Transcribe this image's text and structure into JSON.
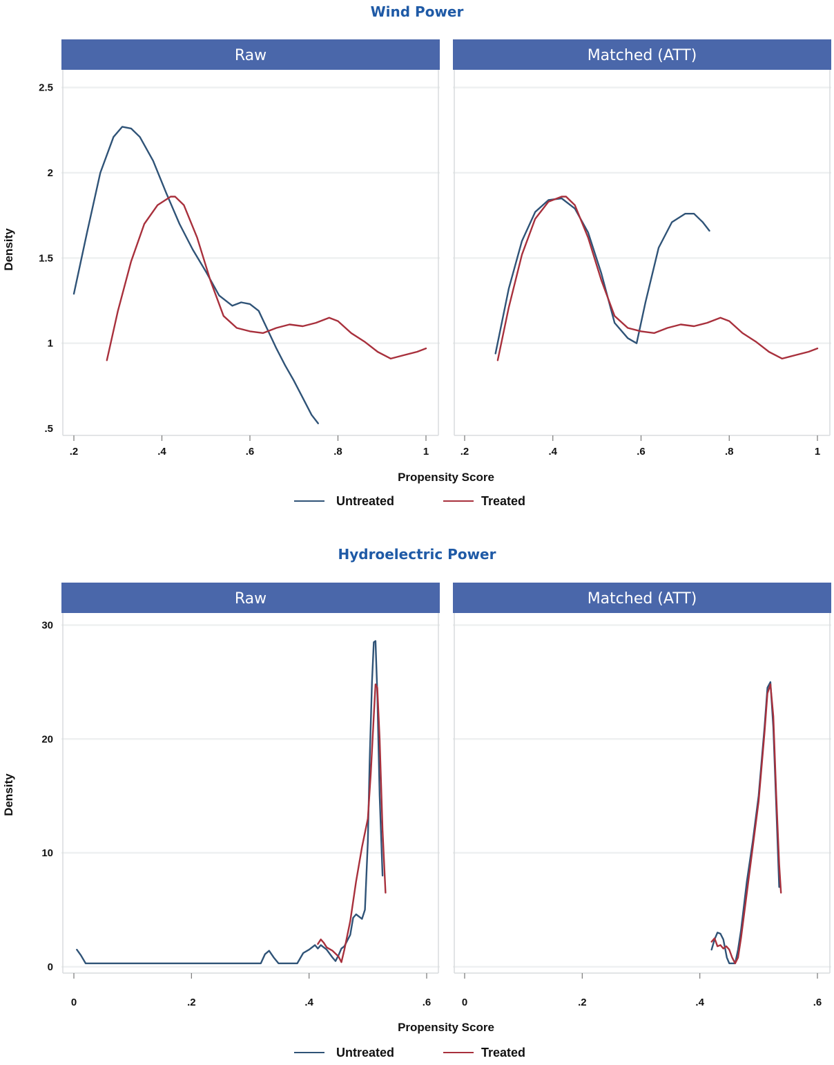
{
  "colors": {
    "untreated": "#2f5377",
    "treated": "#a8303c",
    "strip": "#4a67aa",
    "title": "#1f5aa6"
  },
  "legend": {
    "untreated_label": "Untreated",
    "treated_label": "Treated"
  },
  "chart_data": [
    {
      "type": "line",
      "title": "Wind Power",
      "xlabel": "Propensity Score",
      "ylabel": "Density",
      "ylim": [
        0.5,
        2.6
      ],
      "yticks": [
        0.5,
        1,
        1.5,
        2,
        2.5
      ],
      "ytick_labels": [
        ".5",
        "1",
        "1.5",
        "2",
        "2.5"
      ],
      "xlim": [
        0.2,
        1.0
      ],
      "xticks": [
        0.2,
        0.4,
        0.6,
        0.8,
        1.0
      ],
      "xtick_labels": [
        ".2",
        ".4",
        ".6",
        ".8",
        "1"
      ],
      "legend_position": "bottom",
      "panels": [
        {
          "name": "Raw",
          "series": [
            {
              "name": "Untreated",
              "x": [
                0.2,
                0.23,
                0.26,
                0.29,
                0.31,
                0.33,
                0.35,
                0.38,
                0.41,
                0.44,
                0.47,
                0.5,
                0.53,
                0.56,
                0.58,
                0.6,
                0.62,
                0.64,
                0.66,
                0.68,
                0.7,
                0.72,
                0.74,
                0.755
              ],
              "y": [
                1.29,
                1.65,
                2.0,
                2.21,
                2.27,
                2.26,
                2.21,
                2.07,
                1.88,
                1.7,
                1.55,
                1.42,
                1.28,
                1.22,
                1.24,
                1.23,
                1.19,
                1.08,
                0.97,
                0.87,
                0.78,
                0.68,
                0.58,
                0.53
              ]
            },
            {
              "name": "Treated",
              "x": [
                0.275,
                0.3,
                0.33,
                0.36,
                0.39,
                0.42,
                0.43,
                0.45,
                0.48,
                0.51,
                0.54,
                0.57,
                0.6,
                0.63,
                0.66,
                0.69,
                0.72,
                0.75,
                0.78,
                0.8,
                0.83,
                0.86,
                0.89,
                0.92,
                0.95,
                0.98,
                1.0
              ],
              "y": [
                0.9,
                1.19,
                1.48,
                1.7,
                1.81,
                1.86,
                1.86,
                1.81,
                1.62,
                1.37,
                1.16,
                1.09,
                1.07,
                1.06,
                1.09,
                1.11,
                1.1,
                1.12,
                1.15,
                1.13,
                1.06,
                1.01,
                0.95,
                0.91,
                0.93,
                0.95,
                0.97
              ]
            }
          ]
        },
        {
          "name": "Matched (ATT)",
          "series": [
            {
              "name": "Untreated",
              "x": [
                0.27,
                0.3,
                0.33,
                0.36,
                0.39,
                0.42,
                0.45,
                0.48,
                0.51,
                0.54,
                0.57,
                0.59,
                0.61,
                0.64,
                0.67,
                0.7,
                0.72,
                0.74,
                0.755
              ],
              "y": [
                0.94,
                1.32,
                1.6,
                1.77,
                1.84,
                1.85,
                1.79,
                1.65,
                1.41,
                1.12,
                1.03,
                1.0,
                1.24,
                1.56,
                1.71,
                1.76,
                1.76,
                1.71,
                1.66
              ]
            },
            {
              "name": "Treated",
              "x": [
                0.275,
                0.3,
                0.33,
                0.36,
                0.39,
                0.42,
                0.43,
                0.45,
                0.48,
                0.51,
                0.54,
                0.57,
                0.6,
                0.63,
                0.66,
                0.69,
                0.72,
                0.75,
                0.78,
                0.8,
                0.83,
                0.86,
                0.89,
                0.92,
                0.95,
                0.98,
                1.0
              ],
              "y": [
                0.9,
                1.21,
                1.52,
                1.73,
                1.83,
                1.86,
                1.86,
                1.81,
                1.62,
                1.37,
                1.16,
                1.09,
                1.07,
                1.06,
                1.09,
                1.11,
                1.1,
                1.12,
                1.15,
                1.13,
                1.06,
                1.01,
                0.95,
                0.91,
                0.93,
                0.95,
                0.97
              ]
            }
          ]
        }
      ]
    },
    {
      "type": "line",
      "title": "Hydroelectric Power",
      "xlabel": "Propensity Score",
      "ylabel": "Density",
      "ylim": [
        -0.8,
        31
      ],
      "yticks": [
        0,
        10,
        20,
        30
      ],
      "ytick_labels": [
        "0",
        "10",
        "20",
        "30"
      ],
      "xlim": [
        0,
        0.6
      ],
      "xticks": [
        0,
        0.2,
        0.4,
        0.6
      ],
      "xtick_labels": [
        "0",
        ".2",
        ".4",
        ".6"
      ],
      "legend_position": "bottom",
      "panels": [
        {
          "name": "Raw",
          "series": [
            {
              "name": "Untreated",
              "x": [
                0.005,
                0.012,
                0.02,
                0.1,
                0.2,
                0.3,
                0.318,
                0.325,
                0.332,
                0.34,
                0.348,
                0.38,
                0.39,
                0.4,
                0.41,
                0.415,
                0.42,
                0.43,
                0.44,
                0.445,
                0.45,
                0.455,
                0.46,
                0.47,
                0.475,
                0.48,
                0.49,
                0.495,
                0.5,
                0.503,
                0.507,
                0.51,
                0.513,
                0.516,
                0.52,
                0.525
              ],
              "y": [
                1.5,
                1.0,
                0.3,
                0.3,
                0.3,
                0.3,
                0.3,
                1.1,
                1.4,
                0.8,
                0.3,
                0.3,
                1.2,
                1.5,
                1.9,
                1.6,
                1.9,
                1.5,
                0.8,
                0.5,
                1.0,
                1.6,
                1.8,
                2.8,
                4.3,
                4.6,
                4.2,
                5.0,
                11.0,
                18.0,
                25.0,
                28.5,
                28.6,
                24.0,
                15.0,
                8.0
              ]
            },
            {
              "name": "Treated",
              "x": [
                0.415,
                0.42,
                0.425,
                0.43,
                0.44,
                0.45,
                0.455,
                0.46,
                0.47,
                0.48,
                0.49,
                0.5,
                0.505,
                0.51,
                0.513,
                0.516,
                0.52,
                0.525,
                0.53
              ],
              "y": [
                2.0,
                2.4,
                2.1,
                1.7,
                1.4,
                0.9,
                0.4,
                1.5,
                4.0,
                7.5,
                10.5,
                13.0,
                17.0,
                22.0,
                24.8,
                24.5,
                20.0,
                12.0,
                6.5
              ]
            }
          ]
        },
        {
          "name": "Matched (ATT)",
          "series": [
            {
              "name": "Untreated",
              "x": [
                0.42,
                0.425,
                0.43,
                0.435,
                0.44,
                0.443,
                0.446,
                0.45,
                0.455,
                0.46,
                0.465,
                0.47,
                0.48,
                0.49,
                0.5,
                0.51,
                0.515,
                0.52,
                0.525,
                0.53,
                0.535
              ],
              "y": [
                1.5,
                2.4,
                3.0,
                2.9,
                2.4,
                1.6,
                0.8,
                0.3,
                0.3,
                0.3,
                1.5,
                3.2,
                7.5,
                11.0,
                15.0,
                21.0,
                24.5,
                25.0,
                21.0,
                14.0,
                7.0
              ]
            },
            {
              "name": "Treated",
              "x": [
                0.42,
                0.425,
                0.43,
                0.435,
                0.44,
                0.445,
                0.45,
                0.455,
                0.46,
                0.465,
                0.47,
                0.48,
                0.49,
                0.5,
                0.51,
                0.515,
                0.52,
                0.525,
                0.53,
                0.535,
                0.538
              ],
              "y": [
                2.2,
                2.5,
                1.8,
                1.9,
                1.6,
                1.8,
                1.5,
                0.8,
                0.3,
                0.8,
                2.5,
                6.5,
                10.5,
                14.5,
                20.5,
                24.0,
                24.8,
                22.0,
                15.0,
                9.0,
                6.5
              ]
            }
          ]
        }
      ]
    }
  ]
}
